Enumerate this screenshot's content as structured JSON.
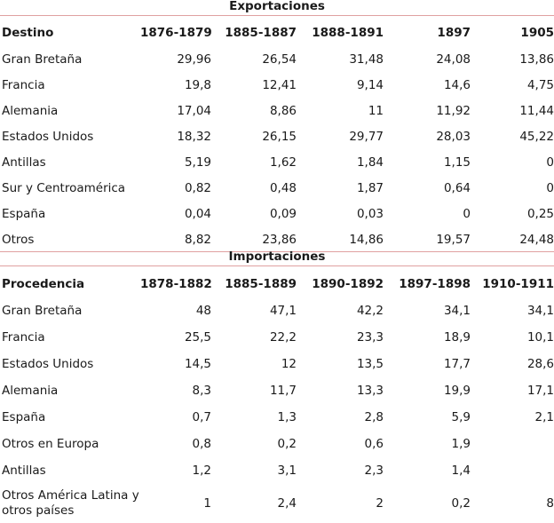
{
  "exports": {
    "title": "Exportaciones",
    "header": [
      "Destino",
      "1876-1879",
      "1885-1887",
      "1888-1891",
      "1897",
      "1905"
    ],
    "rows": [
      [
        "Gran Bretaña",
        "29,96",
        "26,54",
        "31,48",
        "24,08",
        "13,86"
      ],
      [
        "Francia",
        "19,8",
        "12,41",
        "9,14",
        "14,6",
        "4,75"
      ],
      [
        "Alemania",
        "17,04",
        "8,86",
        "11",
        "11,92",
        "11,44"
      ],
      [
        "Estados Unidos",
        "18,32",
        "26,15",
        "29,77",
        "28,03",
        "45,22"
      ],
      [
        "Antillas",
        "5,19",
        "1,62",
        "1,84",
        "1,15",
        "0"
      ],
      [
        "Sur y Centroamérica",
        "0,82",
        "0,48",
        "1,87",
        "0,64",
        "0"
      ],
      [
        "España",
        "0,04",
        "0,09",
        "0,03",
        "0",
        "0,25"
      ],
      [
        "Otros",
        "8,82",
        "23,86",
        "14,86",
        "19,57",
        "24,48"
      ]
    ]
  },
  "imports": {
    "title": "Importaciones",
    "header": [
      "Procedencia",
      "1878-1882",
      "1885-1889",
      "1890-1892",
      "1897-1898",
      "1910-1911"
    ],
    "rows": [
      [
        "Gran Bretaña",
        "48",
        "47,1",
        "42,2",
        "34,1",
        "34,1"
      ],
      [
        "Francia",
        "25,5",
        "22,2",
        "23,3",
        "18,9",
        "10,1"
      ],
      [
        "Estados Unidos",
        "14,5",
        "12",
        "13,5",
        "17,7",
        "28,6"
      ],
      [
        "Alemania",
        "8,3",
        "11,7",
        "13,3",
        "19,9",
        "17,1"
      ],
      [
        "España",
        "0,7",
        "1,3",
        "2,8",
        "5,9",
        "2,1"
      ],
      [
        "Otros en Europa",
        "0,8",
        "0,2",
        "0,6",
        "1,9",
        ""
      ],
      [
        "Antillas",
        "1,2",
        "3,1",
        "2,3",
        "1,4",
        ""
      ],
      [
        "Otros América Latina y otros países",
        "1",
        "2,4",
        "2",
        "0,2",
        "8"
      ]
    ]
  }
}
